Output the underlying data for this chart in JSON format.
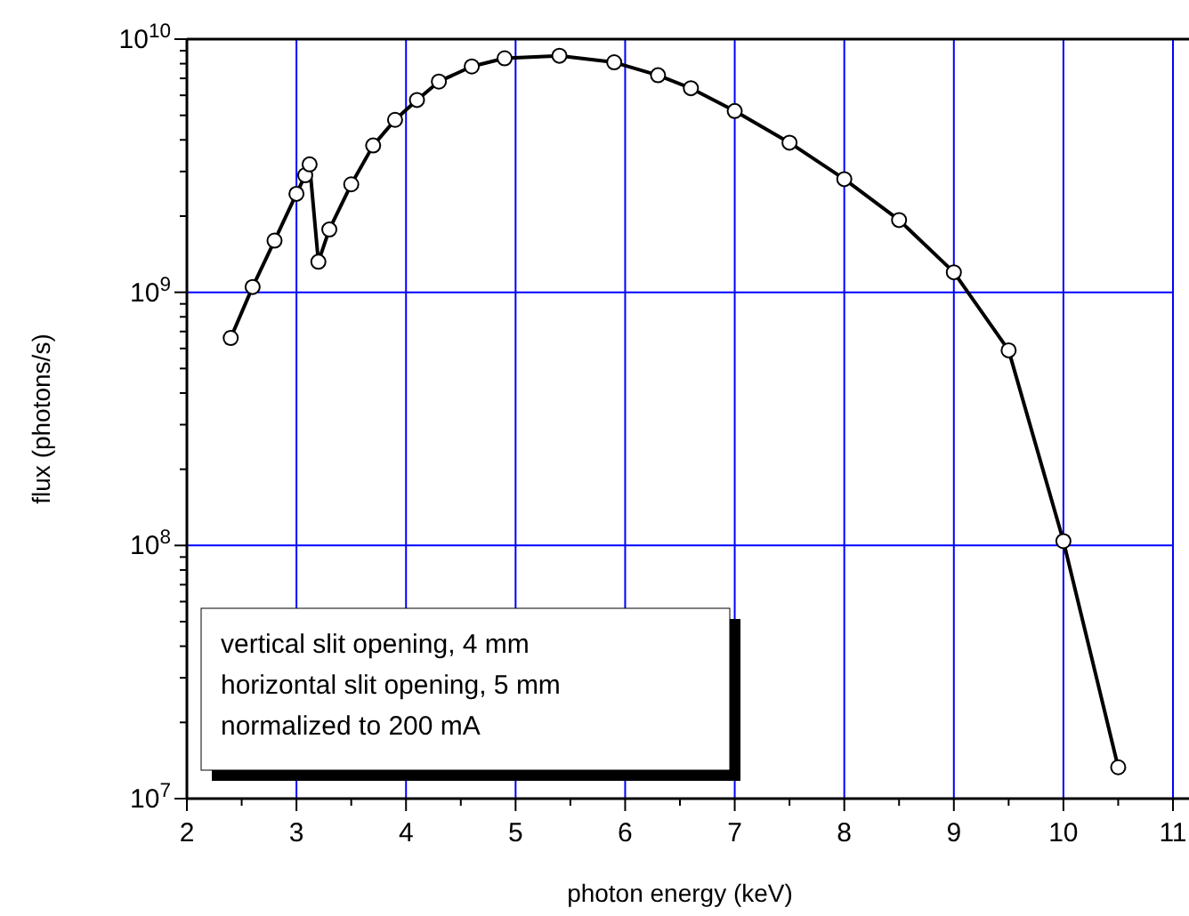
{
  "chart_data": {
    "type": "line",
    "xlabel": "photon energy (keV)",
    "ylabel": "flux (photons/s)",
    "x": [
      2.4,
      2.6,
      2.8,
      3.0,
      3.08,
      3.12,
      3.2,
      3.3,
      3.5,
      3.7,
      3.9,
      4.1,
      4.3,
      4.6,
      4.9,
      5.4,
      5.9,
      6.3,
      6.6,
      7.0,
      7.5,
      8.0,
      8.5,
      9.0,
      9.5,
      10.0,
      10.5
    ],
    "series": [
      {
        "color": "#000000",
        "values": [
          660000000.0,
          1050000000.0,
          1600000000.0,
          2450000000.0,
          2900000000.0,
          3200000000.0,
          1320000000.0,
          1770000000.0,
          2670000000.0,
          3800000000.0,
          4800000000.0,
          5750000000.0,
          6800000000.0,
          7800000000.0,
          8400000000.0,
          8600000000.0,
          8100000000.0,
          7200000000.0,
          6400000000.0,
          5200000000.0,
          3900000000.0,
          2800000000.0,
          1930000000.0,
          1200000000.0,
          590000000.0,
          104000000.0,
          13300000.0
        ]
      }
    ],
    "log": "y",
    "xlim": [
      2,
      11
    ],
    "ylim": [
      10000000.0,
      10000000000.0
    ],
    "xticks": [
      2,
      {
        "value": 2.5,
        "label": null
      },
      3,
      {
        "value": 3.5,
        "label": null
      },
      4,
      {
        "value": 4.5,
        "label": null
      },
      5,
      {
        "value": 5.5,
        "label": null
      },
      6,
      {
        "value": 6.5,
        "label": null
      },
      7,
      {
        "value": 7.5,
        "label": null
      },
      8,
      {
        "value": 8.5,
        "label": null
      },
      9,
      {
        "value": 9.5,
        "label": null
      },
      10,
      {
        "value": 10.5,
        "label": null
      },
      11
    ],
    "yticks": [
      {
        "value": 10000000.0,
        "label": "10$^{7}$"
      },
      {
        "value": 100000000.0,
        "label": "10$^{8}$"
      },
      {
        "value": 1000000000.0,
        "label": "10$^{9}$"
      },
      {
        "value": 10000000000.0,
        "label": "10$^{10}$"
      }
    ],
    "grid": true,
    "marker": "circle",
    "line_style": "solid",
    "annotations": [
      "vertical slit opening, 4 mm",
      "horizontal slit opening, 5 mm",
      "normalized to 200 mA"
    ]
  }
}
